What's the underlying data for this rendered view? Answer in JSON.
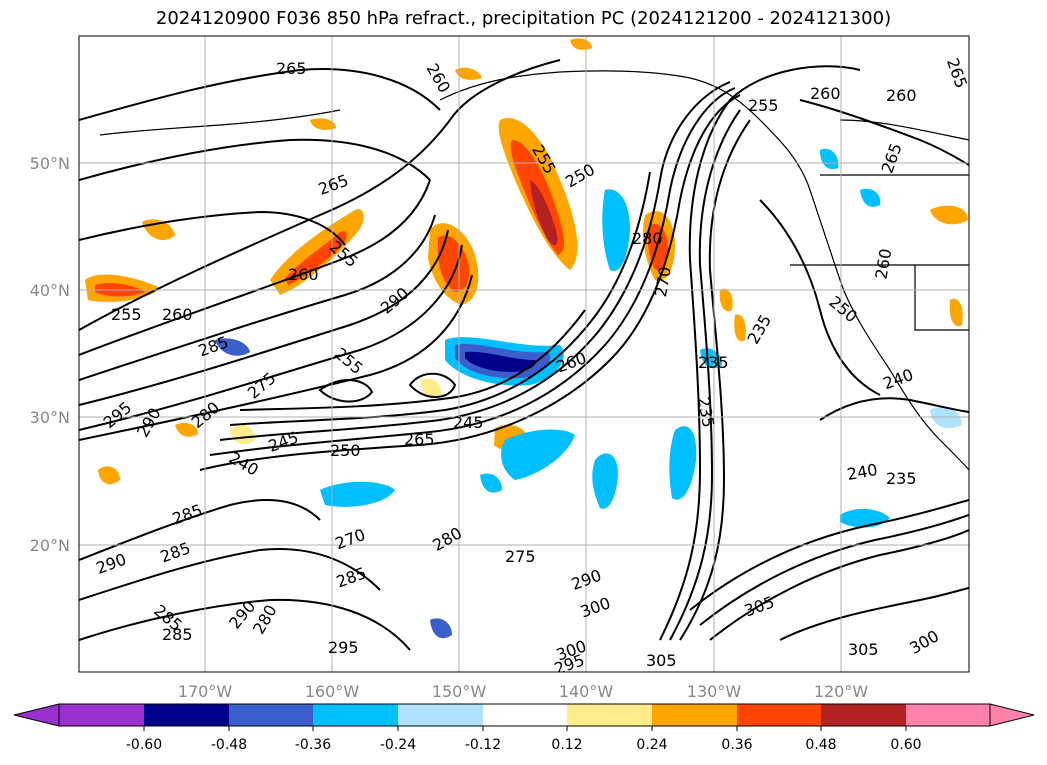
{
  "title": "2024120900 F036 850 hPa refract., precipitation PC (2024121200 - 2024121300)",
  "axes": {
    "lat_labels": [
      "50°N",
      "40°N",
      "30°N",
      "20°N"
    ],
    "lon_labels": [
      "170°W",
      "160°W",
      "150°W",
      "140°W",
      "130°W",
      "120°W"
    ]
  },
  "colorbar": {
    "ticks": [
      "-0.60",
      "-0.48",
      "-0.36",
      "-0.24",
      "-0.12",
      "0.12",
      "0.24",
      "0.36",
      "0.48",
      "0.60"
    ],
    "colors": [
      "#9b30d0",
      "#00008b",
      "#3a5fcd",
      "#00bfff",
      "#b0e2ff",
      "#ffffff",
      "#ffec8b",
      "#ffa500",
      "#ff4500",
      "#b22222",
      "#ff82ab"
    ]
  },
  "contour_labels": [
    "265",
    "260",
    "265",
    "255",
    "250",
    "255",
    "260",
    "260",
    "265",
    "265",
    "255",
    "260",
    "255",
    "260",
    "290",
    "280",
    "270",
    "285",
    "255",
    "275",
    "295",
    "290",
    "280",
    "245",
    "240",
    "250",
    "265",
    "245",
    "260",
    "235",
    "235",
    "235",
    "250",
    "260",
    "240",
    "240",
    "235",
    "285",
    "285",
    "290",
    "270",
    "280",
    "275",
    "285",
    "290",
    "300",
    "290",
    "280",
    "285",
    "285",
    "295",
    "300",
    "295",
    "305",
    "305",
    "305",
    "300"
  ]
}
